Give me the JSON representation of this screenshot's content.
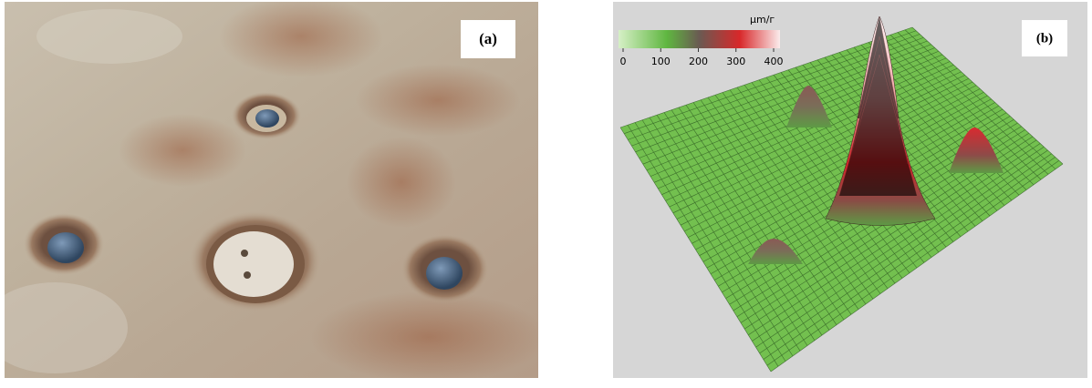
{
  "panels": [
    {
      "label": "(a)"
    },
    {
      "label": "(b)",
      "colorbar": {
        "unit": "μm/г",
        "ticks": [
          0,
          100,
          200,
          300,
          400
        ]
      }
    }
  ]
}
